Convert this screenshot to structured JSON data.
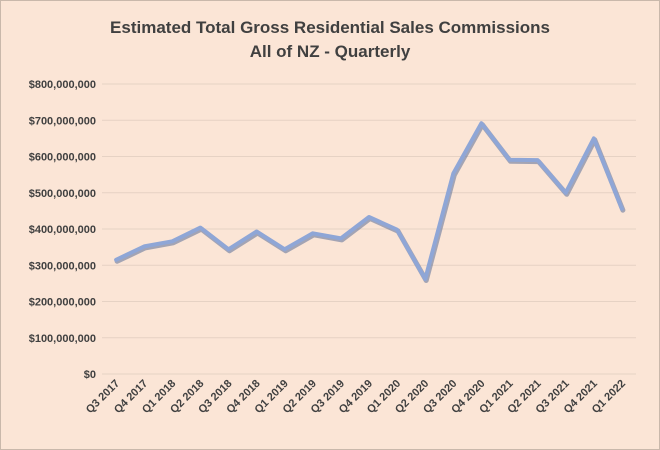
{
  "chart_data": {
    "type": "line",
    "title": "Estimated Total Gross Residential Sales Commissions",
    "subtitle": "All of NZ - Quarterly",
    "xlabel": "",
    "ylabel": "",
    "categories": [
      "Q3 2017",
      "Q4 2017",
      "Q1 2018",
      "Q2 2018",
      "Q3 2018",
      "Q4 2018",
      "Q1 2019",
      "Q2 2019",
      "Q3 2019",
      "Q4 2019",
      "Q1 2020",
      "Q2  2020",
      "Q3 2020",
      "Q4 2020",
      "Q1 2021",
      "Q2 2021",
      "Q3 2021",
      "Q4 2021",
      "Q1 2022"
    ],
    "series": [
      {
        "values": [
          315000000,
          352000000,
          366000000,
          404000000,
          344000000,
          393000000,
          344000000,
          388000000,
          374000000,
          433000000,
          398000000,
          262000000,
          553000000,
          692000000,
          591000000,
          590000000,
          500000000,
          650000000,
          456000000
        ]
      }
    ],
    "ylim": [
      0,
      800000000
    ],
    "yticks": [
      0,
      100000000,
      200000000,
      300000000,
      400000000,
      500000000,
      600000000,
      700000000,
      800000000
    ],
    "ytick_labels": [
      "$0",
      "$100,000,000",
      "$200,000,000",
      "$300,000,000",
      "$400,000,000",
      "$500,000,000",
      "$600,000,000",
      "$700,000,000",
      "$800,000,000"
    ],
    "grid": true,
    "legend": "none",
    "colors": {
      "line": "#8fa6d6",
      "line_shadow": "#5b6f99",
      "grid": "#e6d2c4",
      "text": "#404040",
      "background": "#fbe5d6"
    }
  }
}
